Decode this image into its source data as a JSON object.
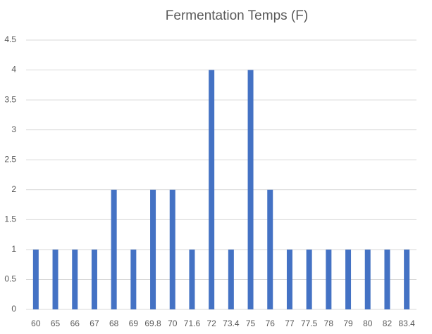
{
  "chart_data": {
    "type": "bar",
    "title": "Fermentation Temps (F)",
    "categories": [
      "60",
      "65",
      "66",
      "67",
      "68",
      "69",
      "69.8",
      "70",
      "71.6",
      "72",
      "73.4",
      "75",
      "76",
      "77",
      "77.5",
      "78",
      "79",
      "80",
      "82",
      "83.4"
    ],
    "values": [
      1,
      1,
      1,
      1,
      2,
      1,
      2,
      2,
      1,
      4,
      1,
      4,
      2,
      1,
      1,
      1,
      1,
      1,
      1,
      1
    ],
    "color": "#4472c4",
    "ylim": [
      0,
      4.5
    ],
    "yticks": [
      0,
      0.5,
      1,
      1.5,
      2,
      2.5,
      3,
      3.5,
      4,
      4.5
    ],
    "grid": true
  }
}
